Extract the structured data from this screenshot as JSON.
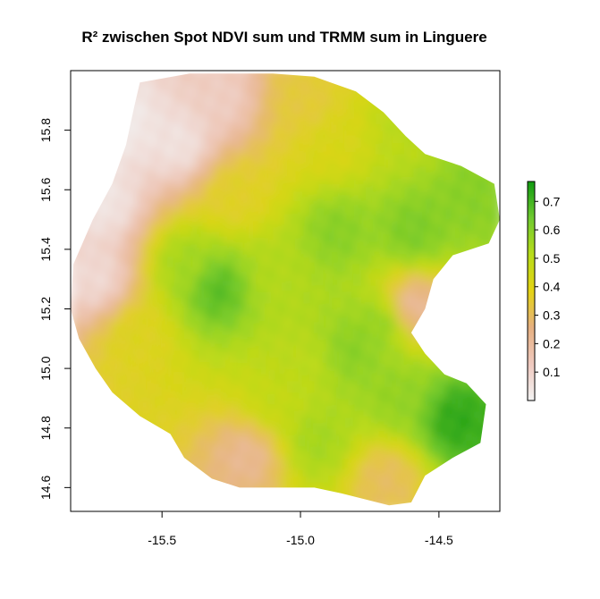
{
  "chart_data": {
    "type": "heatmap",
    "title": "R² zwischen Spot NDVI sum und TRMM sum in Linguere",
    "xlabel": "",
    "ylabel": "",
    "xlim": [
      -15.83,
      -14.28
    ],
    "ylim": [
      14.52,
      16.0
    ],
    "x_ticks": [
      -15.5,
      -15.0,
      -14.5
    ],
    "x_tick_labels": [
      "-15.5",
      "-15.0",
      "-14.5"
    ],
    "y_ticks": [
      14.6,
      14.8,
      15.0,
      15.2,
      15.4,
      15.6,
      15.8
    ],
    "y_tick_labels": [
      "14.6",
      "14.8",
      "15.0",
      "15.2",
      "15.4",
      "15.6",
      "15.8"
    ],
    "grid": false,
    "legend": {
      "placement": "right",
      "range": [
        0.0,
        0.77
      ],
      "ticks": [
        0.1,
        0.2,
        0.3,
        0.4,
        0.5,
        0.6,
        0.7
      ],
      "tick_labels": [
        "0.1",
        "0.2",
        "0.3",
        "0.4",
        "0.5",
        "0.6",
        "0.7"
      ]
    },
    "colormap": [
      "#f2f2f2",
      "#efc9bf",
      "#e6b081",
      "#e4d314",
      "#b8dc1a",
      "#6fca30",
      "#109a10"
    ],
    "region_outline": [
      [
        -15.58,
        15.96
      ],
      [
        -15.4,
        15.99
      ],
      [
        -15.1,
        15.99
      ],
      [
        -14.95,
        15.98
      ],
      [
        -14.8,
        15.93
      ],
      [
        -14.7,
        15.86
      ],
      [
        -14.62,
        15.78
      ],
      [
        -14.55,
        15.72
      ],
      [
        -14.42,
        15.68
      ],
      [
        -14.3,
        15.62
      ],
      [
        -14.28,
        15.5
      ],
      [
        -14.32,
        15.42
      ],
      [
        -14.45,
        15.38
      ],
      [
        -14.52,
        15.3
      ],
      [
        -14.55,
        15.2
      ],
      [
        -14.6,
        15.12
      ],
      [
        -14.55,
        15.05
      ],
      [
        -14.48,
        14.98
      ],
      [
        -14.4,
        14.95
      ],
      [
        -14.33,
        14.88
      ],
      [
        -14.35,
        14.75
      ],
      [
        -14.45,
        14.7
      ],
      [
        -14.55,
        14.64
      ],
      [
        -14.6,
        14.55
      ],
      [
        -14.68,
        14.54
      ],
      [
        -14.85,
        14.58
      ],
      [
        -14.95,
        14.6
      ],
      [
        -15.08,
        14.6
      ],
      [
        -15.22,
        14.6
      ],
      [
        -15.32,
        14.63
      ],
      [
        -15.42,
        14.7
      ],
      [
        -15.47,
        14.78
      ],
      [
        -15.58,
        14.84
      ],
      [
        -15.68,
        14.92
      ],
      [
        -15.74,
        15.0
      ],
      [
        -15.8,
        15.1
      ],
      [
        -15.83,
        15.2
      ],
      [
        -15.82,
        15.35
      ],
      [
        -15.75,
        15.5
      ],
      [
        -15.68,
        15.62
      ],
      [
        -15.63,
        15.75
      ],
      [
        -15.6,
        15.88
      ]
    ],
    "value_centers": [
      {
        "x": -15.31,
        "y": 15.26,
        "value": 0.68
      },
      {
        "x": -15.42,
        "y": 15.34,
        "value": 0.55
      },
      {
        "x": -15.1,
        "y": 15.3,
        "value": 0.52
      },
      {
        "x": -14.88,
        "y": 15.45,
        "value": 0.6
      },
      {
        "x": -14.6,
        "y": 15.45,
        "value": 0.62
      },
      {
        "x": -14.4,
        "y": 15.57,
        "value": 0.6
      },
      {
        "x": -14.45,
        "y": 14.82,
        "value": 0.74
      },
      {
        "x": -14.65,
        "y": 14.9,
        "value": 0.58
      },
      {
        "x": -14.82,
        "y": 15.05,
        "value": 0.6
      },
      {
        "x": -14.72,
        "y": 15.14,
        "value": 0.58
      },
      {
        "x": -15.0,
        "y": 15.0,
        "value": 0.5
      },
      {
        "x": -15.1,
        "y": 14.88,
        "value": 0.48
      },
      {
        "x": -14.95,
        "y": 14.75,
        "value": 0.55
      },
      {
        "x": -14.62,
        "y": 15.8,
        "value": 0.5
      },
      {
        "x": -14.9,
        "y": 15.75,
        "value": 0.42
      },
      {
        "x": -15.0,
        "y": 15.88,
        "value": 0.35
      },
      {
        "x": -15.25,
        "y": 15.58,
        "value": 0.38
      },
      {
        "x": -15.6,
        "y": 15.1,
        "value": 0.4
      },
      {
        "x": -15.65,
        "y": 15.82,
        "value": 0.02
      },
      {
        "x": -15.45,
        "y": 15.75,
        "value": 0.05
      },
      {
        "x": -15.72,
        "y": 15.55,
        "value": 0.04
      },
      {
        "x": -15.75,
        "y": 15.3,
        "value": 0.08
      },
      {
        "x": -15.3,
        "y": 15.9,
        "value": 0.12
      },
      {
        "x": -15.2,
        "y": 14.7,
        "value": 0.22
      },
      {
        "x": -14.7,
        "y": 14.62,
        "value": 0.3
      },
      {
        "x": -14.6,
        "y": 15.2,
        "value": 0.2
      }
    ]
  }
}
